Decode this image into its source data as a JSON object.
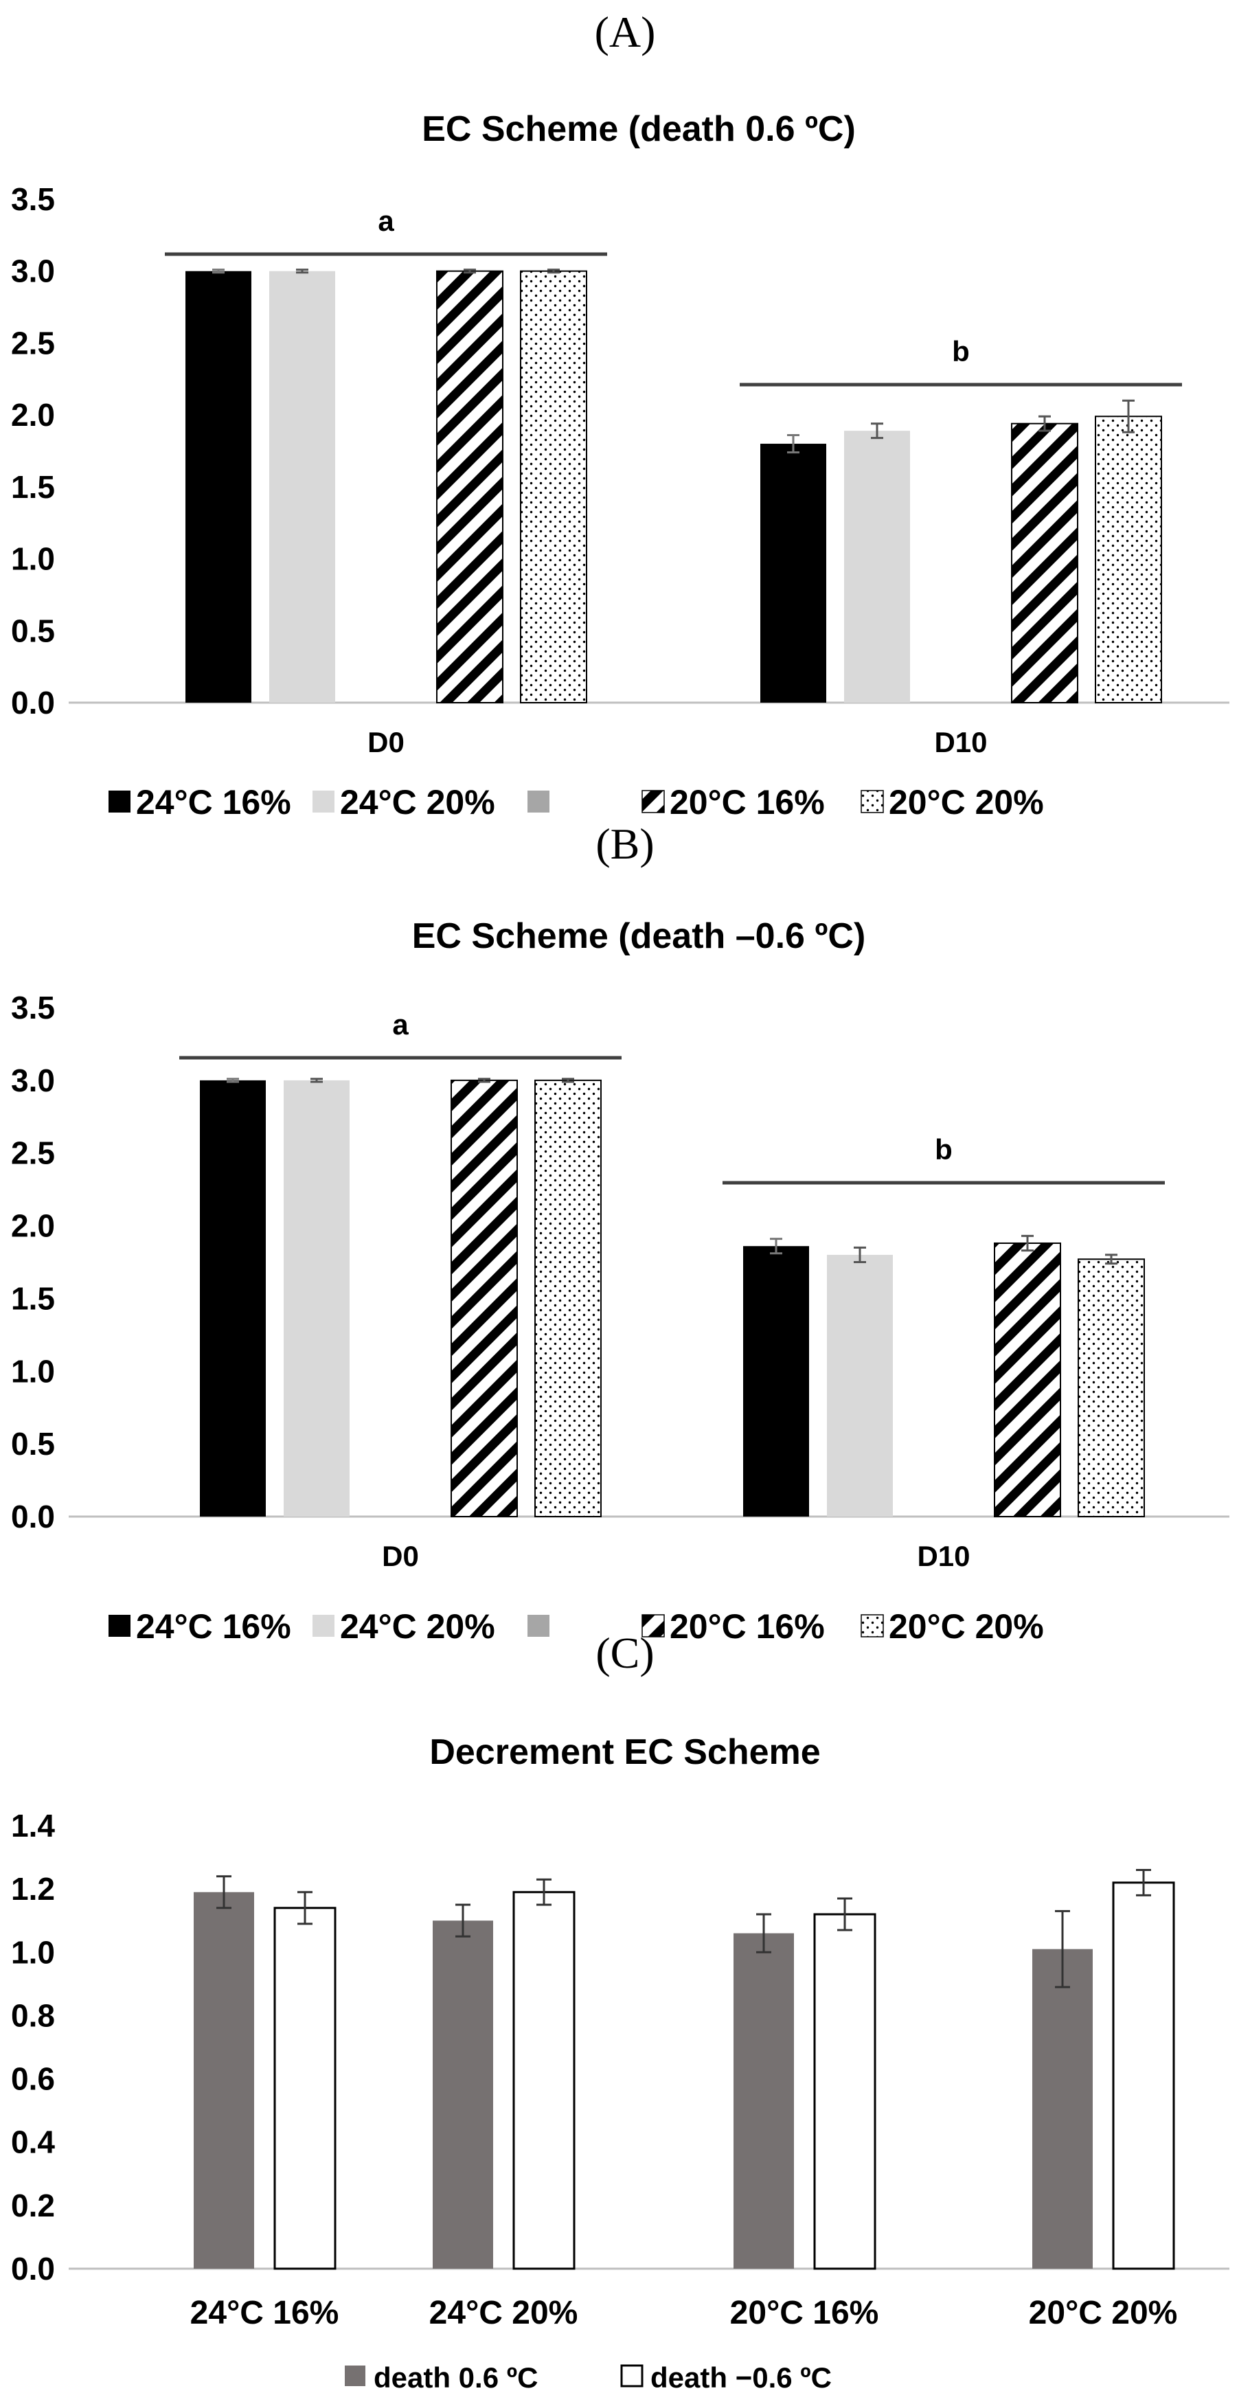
{
  "panels": {
    "a": "(A)",
    "b": "(B)",
    "c": "(C)"
  },
  "chart_data": [
    {
      "type": "bar",
      "title": "EC Scheme (death 0.6 ºC)",
      "categories": [
        "D0",
        "D10"
      ],
      "ylim": [
        0,
        3.5
      ],
      "yticks": [
        "0.0",
        "0.5",
        "1.0",
        "1.5",
        "2.0",
        "2.5",
        "3.0",
        "3.5"
      ],
      "series": [
        {
          "name": "24°C 16%",
          "values": [
            3.0,
            1.8
          ],
          "errors": [
            0.01,
            0.06
          ]
        },
        {
          "name": "24°C 20%",
          "values": [
            3.0,
            1.89
          ],
          "errors": [
            0.01,
            0.05
          ]
        },
        {
          "name": "",
          "values": [
            null,
            null
          ],
          "errors": [
            null,
            null
          ]
        },
        {
          "name": "20°C 16%",
          "values": [
            3.0,
            1.94
          ],
          "errors": [
            0.01,
            0.05
          ]
        },
        {
          "name": "20°C 20%",
          "values": [
            3.0,
            1.99
          ],
          "errors": [
            0.01,
            0.11
          ]
        }
      ],
      "significance": [
        {
          "label": "a",
          "category": "D0"
        },
        {
          "label": "b",
          "category": "D10"
        }
      ]
    },
    {
      "type": "bar",
      "title": "EC Scheme (death –0.6 ºC)",
      "categories": [
        "D0",
        "D10"
      ],
      "ylim": [
        0,
        3.5
      ],
      "yticks": [
        "0.0",
        "0.5",
        "1.0",
        "1.5",
        "2.0",
        "2.5",
        "3.0",
        "3.5"
      ],
      "series": [
        {
          "name": "24°C 16%",
          "values": [
            3.0,
            1.86
          ],
          "errors": [
            0.01,
            0.05
          ]
        },
        {
          "name": "24°C 20%",
          "values": [
            3.0,
            1.8
          ],
          "errors": [
            0.01,
            0.05
          ]
        },
        {
          "name": "",
          "values": [
            null,
            null
          ],
          "errors": [
            null,
            null
          ]
        },
        {
          "name": "20°C 16%",
          "values": [
            3.0,
            1.88
          ],
          "errors": [
            0.01,
            0.05
          ]
        },
        {
          "name": "20°C 20%",
          "values": [
            3.0,
            1.77
          ],
          "errors": [
            0.01,
            0.03
          ]
        }
      ],
      "significance": [
        {
          "label": "a",
          "category": "D0"
        },
        {
          "label": "b",
          "category": "D10"
        }
      ]
    },
    {
      "type": "bar",
      "title": "Decrement EC Scheme",
      "categories": [
        "24°C 16%",
        "24°C 20%",
        "20°C 16%",
        "20°C 20%"
      ],
      "ylim": [
        0,
        1.4
      ],
      "yticks": [
        "0.0",
        "0.2",
        "0.4",
        "0.6",
        "0.8",
        "1.0",
        "1.2",
        "1.4"
      ],
      "series": [
        {
          "name": "death 0.6 ºC",
          "values": [
            1.19,
            1.1,
            1.06,
            1.01
          ],
          "errors": [
            0.05,
            0.05,
            0.06,
            0.12
          ]
        },
        {
          "name": "death −0.6 ºC",
          "values": [
            1.14,
            1.19,
            1.12,
            1.22
          ],
          "errors": [
            0.05,
            0.04,
            0.05,
            0.04
          ]
        }
      ]
    }
  ]
}
